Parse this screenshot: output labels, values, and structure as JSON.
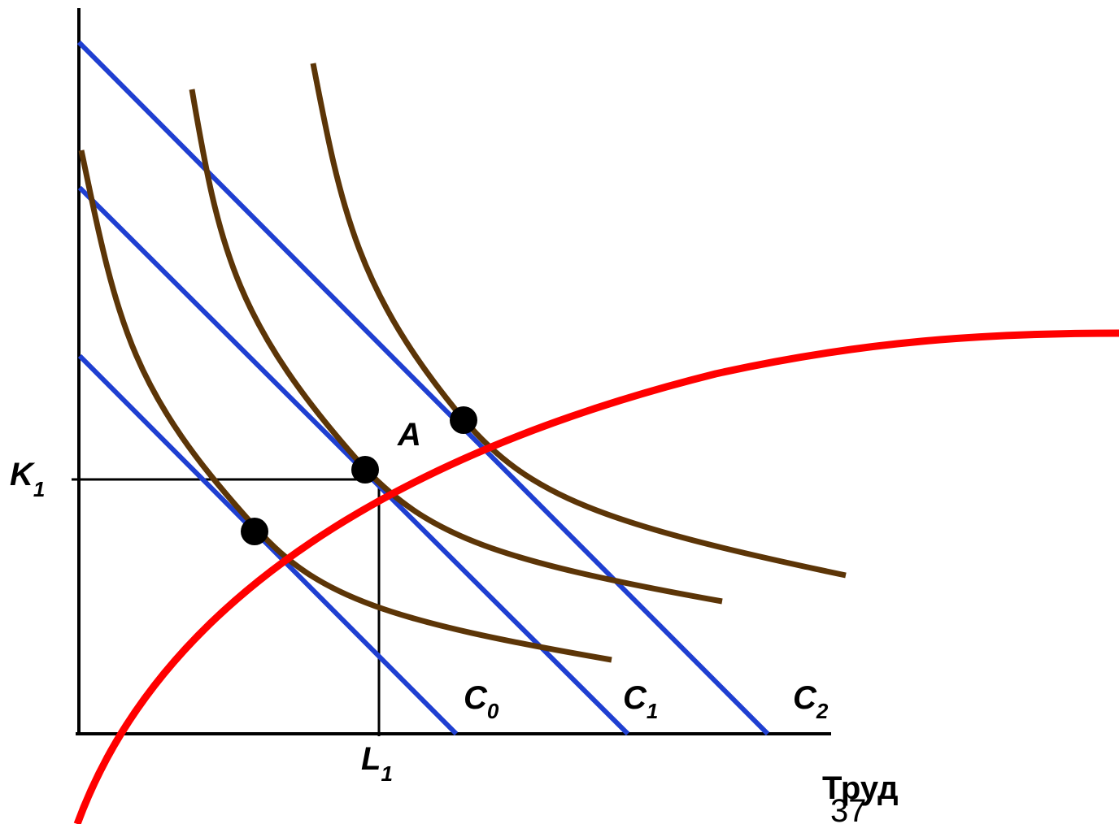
{
  "labels": {
    "k_main": "K",
    "k_sub": "1",
    "l_main": "L",
    "l_sub": "1",
    "point_a": "A",
    "c0_main": "C",
    "c0_sub": "0",
    "c1_main": "C",
    "c1_sub": "1",
    "c2_main": "C",
    "c2_sub": "2",
    "x_axis_title": "Труд"
  },
  "page_number": "37",
  "colors": {
    "axes": "#000000",
    "isocost": "#1f3fd1",
    "isoquant": "#5c3507",
    "expansion_path": "#ff0000",
    "point": "#000000"
  }
}
